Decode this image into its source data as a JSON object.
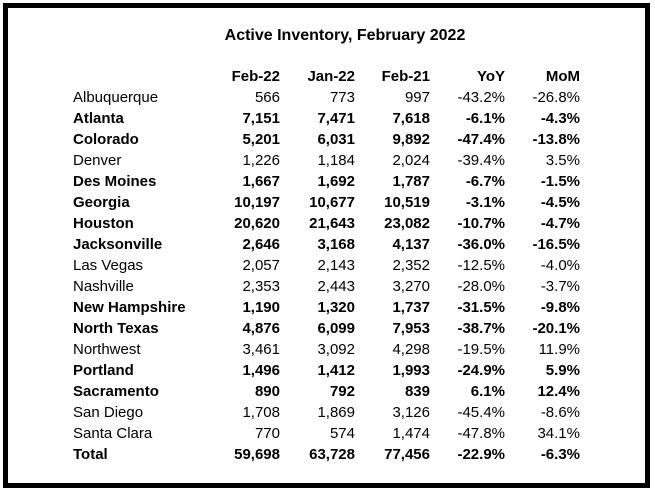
{
  "colors": {
    "border": "#000000",
    "background": "#ffffff",
    "text": "#000000"
  },
  "chart_data": {
    "type": "table",
    "title": "Active Inventory, February 2022",
    "columns": [
      "Feb-22",
      "Jan-22",
      "Feb-21",
      "YoY",
      "MoM"
    ],
    "rows": [
      {
        "name": "Albuquerque",
        "values": [
          "566",
          "773",
          "997",
          "-43.2%",
          "-26.8%"
        ],
        "bold": false
      },
      {
        "name": "Atlanta",
        "values": [
          "7,151",
          "7,471",
          "7,618",
          "-6.1%",
          "-4.3%"
        ],
        "bold": true
      },
      {
        "name": "Colorado",
        "values": [
          "5,201",
          "6,031",
          "9,892",
          "-47.4%",
          "-13.8%"
        ],
        "bold": true
      },
      {
        "name": "Denver",
        "values": [
          "1,226",
          "1,184",
          "2,024",
          "-39.4%",
          "3.5%"
        ],
        "bold": false
      },
      {
        "name": "Des Moines",
        "values": [
          "1,667",
          "1,692",
          "1,787",
          "-6.7%",
          "-1.5%"
        ],
        "bold": true
      },
      {
        "name": "Georgia",
        "values": [
          "10,197",
          "10,677",
          "10,519",
          "-3.1%",
          "-4.5%"
        ],
        "bold": true
      },
      {
        "name": "Houston",
        "values": [
          "20,620",
          "21,643",
          "23,082",
          "-10.7%",
          "-4.7%"
        ],
        "bold": true
      },
      {
        "name": "Jacksonville",
        "values": [
          "2,646",
          "3,168",
          "4,137",
          "-36.0%",
          "-16.5%"
        ],
        "bold": true
      },
      {
        "name": "Las Vegas",
        "values": [
          "2,057",
          "2,143",
          "2,352",
          "-12.5%",
          "-4.0%"
        ],
        "bold": false
      },
      {
        "name": "Nashville",
        "values": [
          "2,353",
          "2,443",
          "3,270",
          "-28.0%",
          "-3.7%"
        ],
        "bold": false
      },
      {
        "name": "New Hampshire",
        "values": [
          "1,190",
          "1,320",
          "1,737",
          "-31.5%",
          "-9.8%"
        ],
        "bold": true
      },
      {
        "name": "North Texas",
        "values": [
          "4,876",
          "6,099",
          "7,953",
          "-38.7%",
          "-20.1%"
        ],
        "bold": true
      },
      {
        "name": "Northwest",
        "values": [
          "3,461",
          "3,092",
          "4,298",
          "-19.5%",
          "11.9%"
        ],
        "bold": false
      },
      {
        "name": "Portland",
        "values": [
          "1,496",
          "1,412",
          "1,993",
          "-24.9%",
          "5.9%"
        ],
        "bold": true
      },
      {
        "name": "Sacramento",
        "values": [
          "890",
          "792",
          "839",
          "6.1%",
          "12.4%"
        ],
        "bold": true
      },
      {
        "name": "San Diego",
        "values": [
          "1,708",
          "1,869",
          "3,126",
          "-45.4%",
          "-8.6%"
        ],
        "bold": false
      },
      {
        "name": "Santa Clara",
        "values": [
          "770",
          "574",
          "1,474",
          "-47.8%",
          "34.1%"
        ],
        "bold": false
      },
      {
        "name": "Total",
        "values": [
          "59,698",
          "63,728",
          "77,456",
          "-22.9%",
          "-6.3%"
        ],
        "bold": true
      }
    ]
  }
}
